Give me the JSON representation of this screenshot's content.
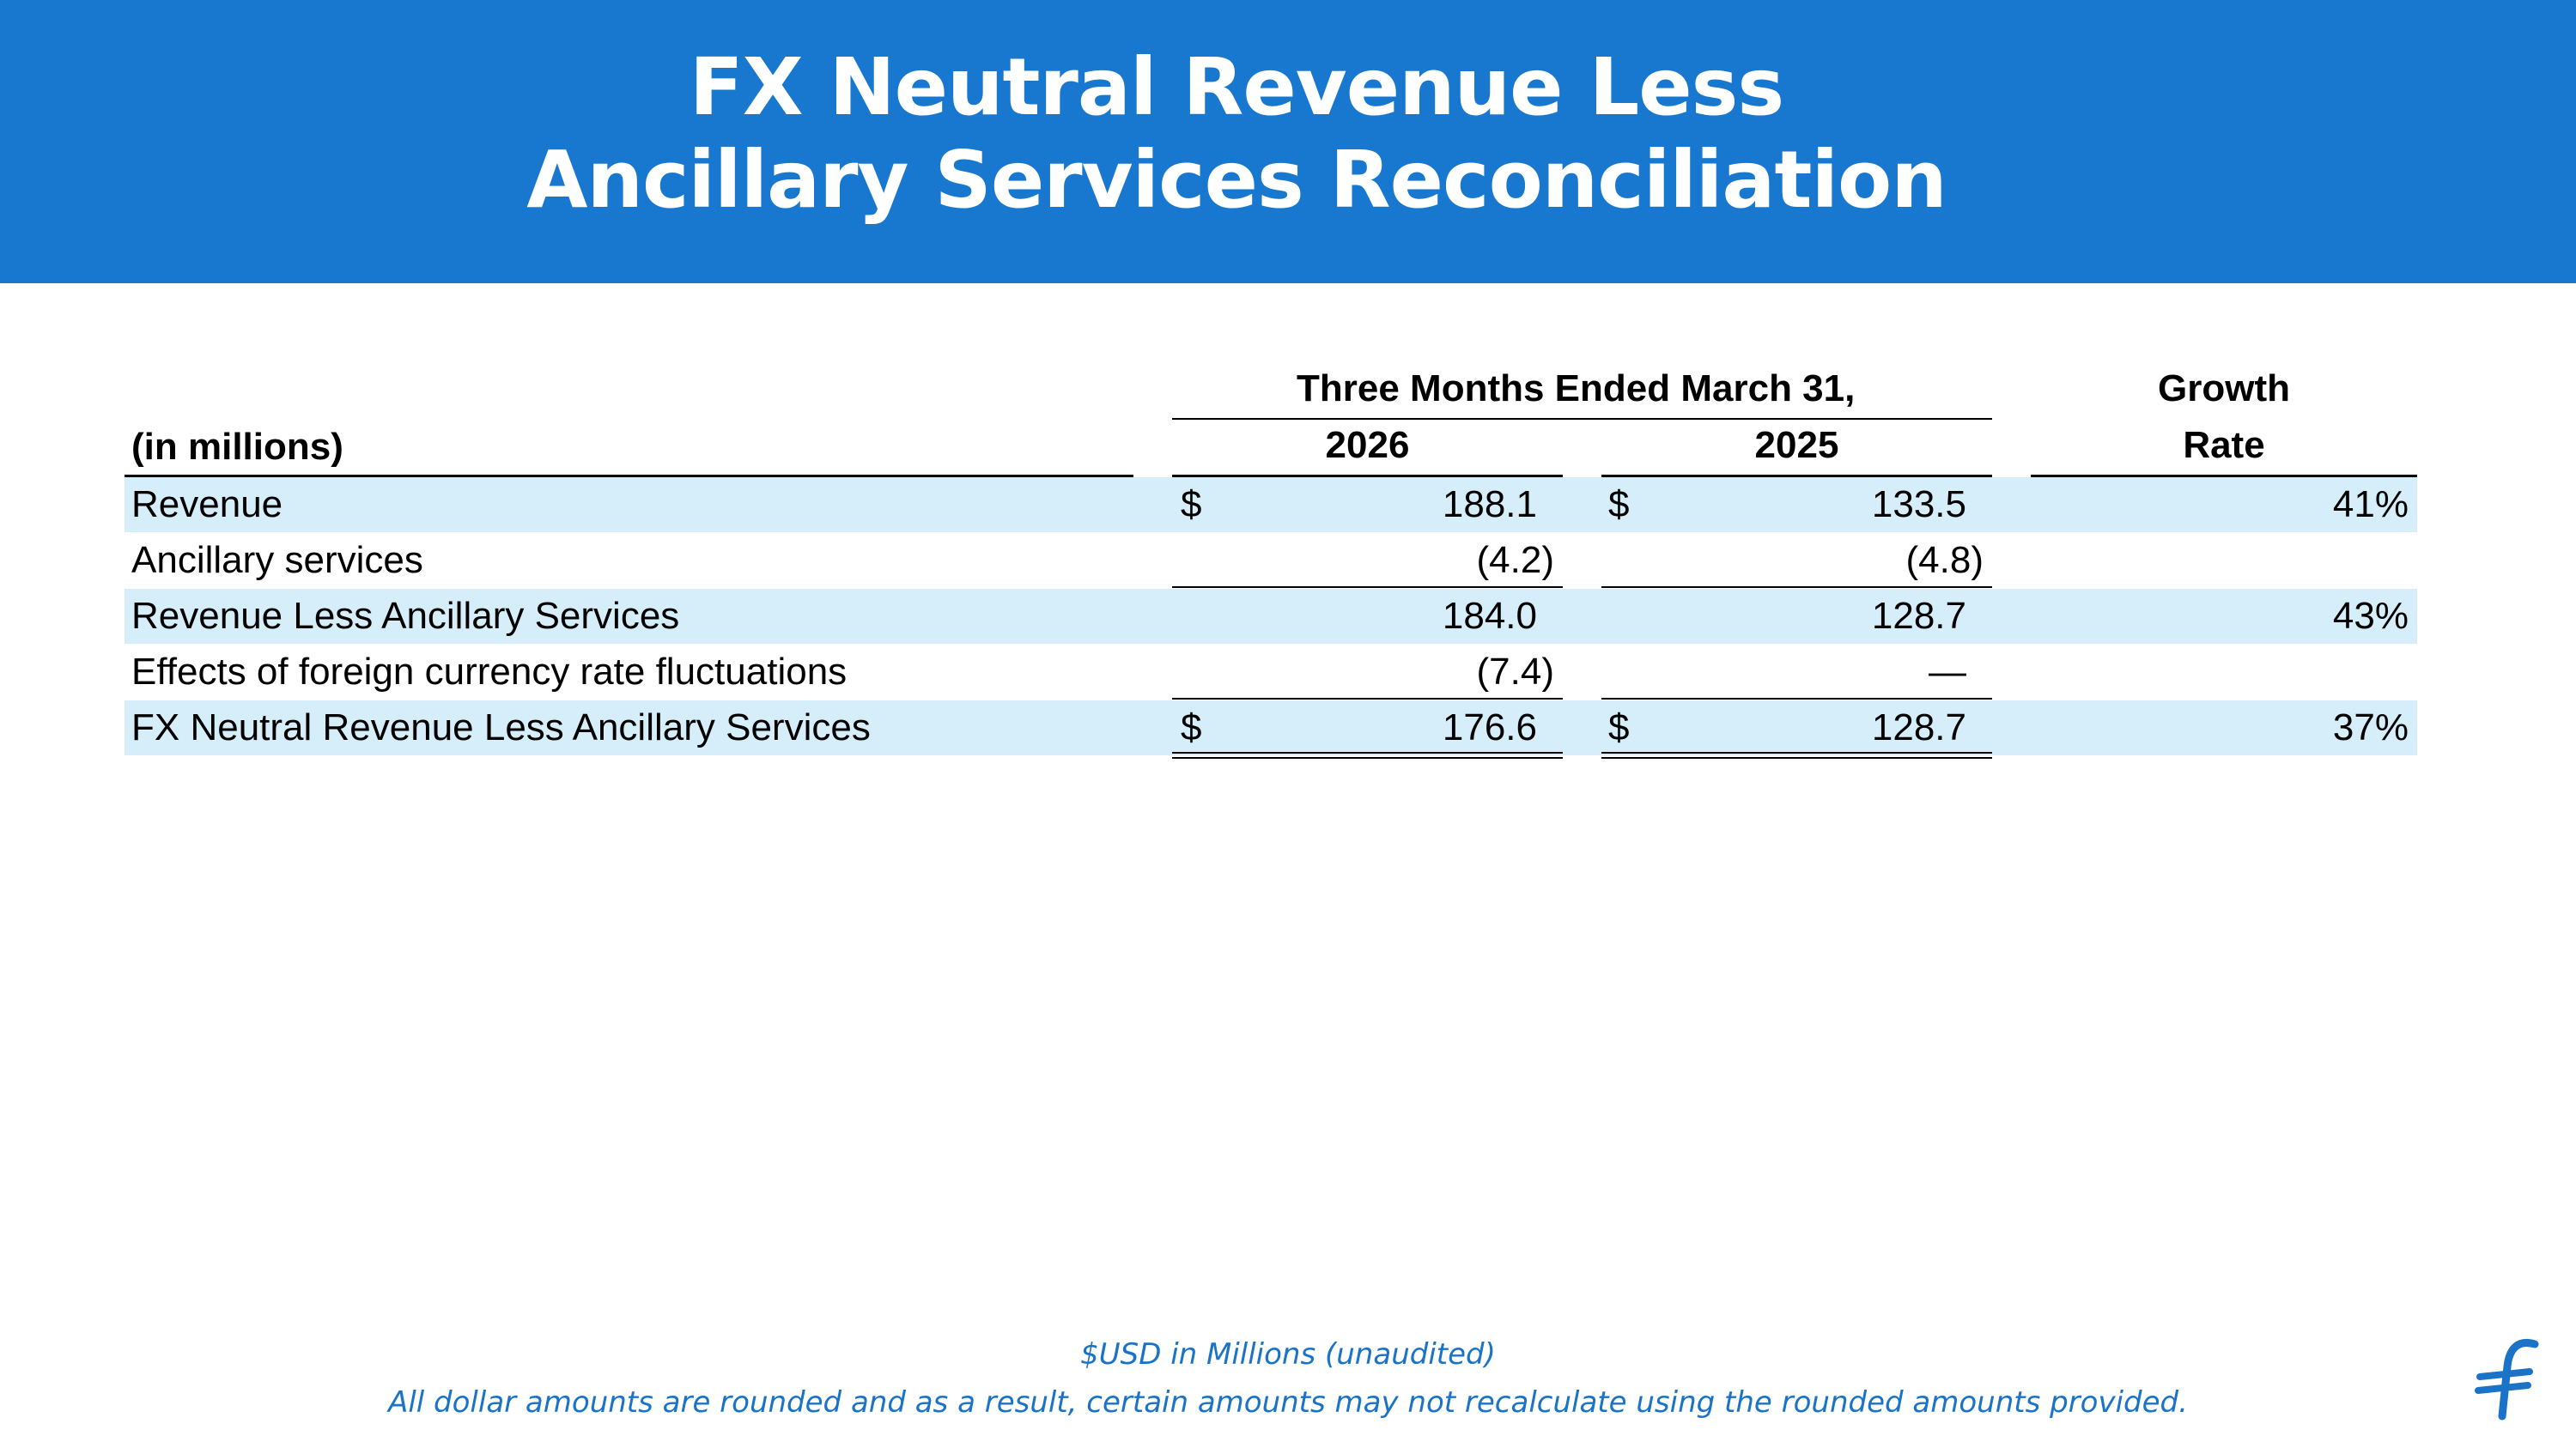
{
  "header": {
    "title_line1": "FX Neutral Revenue Less",
    "title_line2": "Ancillary Services Reconciliation",
    "background": "#1878d0"
  },
  "table": {
    "unit_label": "(in millions)",
    "period_header": "Three Months Ended March 31,",
    "year_1": "2026",
    "year_2": "2025",
    "growth_header_line1": "Growth",
    "growth_header_line2": "Rate",
    "row_band_color": "#d5eef9",
    "rows": [
      {
        "label": "Revenue",
        "cur1": "$",
        "v2026": "188.1",
        "cur2": "$",
        "v2025": "133.5",
        "growth": "41%"
      },
      {
        "label": "Ancillary services",
        "cur1": "",
        "v2026": "(4.2)",
        "cur2": "",
        "v2025": "(4.8)",
        "growth": ""
      },
      {
        "label": "Revenue Less Ancillary Services",
        "cur1": "",
        "v2026": "184.0",
        "cur2": "",
        "v2025": "128.7",
        "growth": "43%"
      },
      {
        "label": "Effects of foreign currency rate fluctuations",
        "cur1": "",
        "v2026": "(7.4)",
        "cur2": "",
        "v2025": "—",
        "growth": ""
      },
      {
        "label": "FX Neutral Revenue Less Ancillary Services",
        "cur1": "$",
        "v2026": "176.6",
        "cur2": "$",
        "v2025": "128.7",
        "growth": "37%"
      }
    ]
  },
  "footer": {
    "note_line1": "$USD in Millions (unaudited)",
    "note_line2": "All dollar amounts are rounded and as a result, certain amounts may not recalculate using the rounded amounts provided.",
    "logo_icon": "flywire-logo-icon",
    "accent": "#1a73c7"
  }
}
